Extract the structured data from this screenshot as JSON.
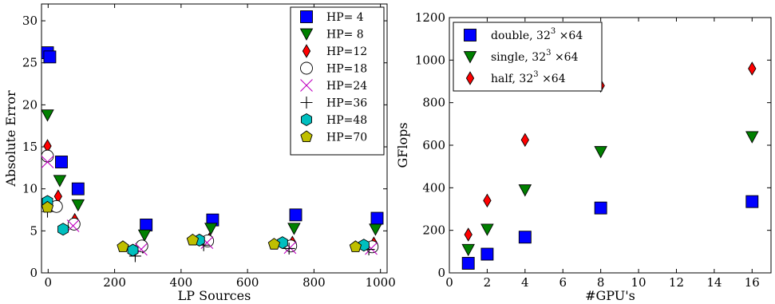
{
  "chart_data": [
    {
      "type": "scatter",
      "xlabel": "LP Sources",
      "ylabel": "Absolute Error",
      "xlim": [
        -20,
        1020
      ],
      "ylim": [
        0,
        32
      ],
      "xticks": [
        0,
        200,
        400,
        600,
        800,
        1000
      ],
      "yticks": [
        0,
        5,
        10,
        15,
        20,
        25,
        30
      ],
      "legend_position": "top-right",
      "grid": false,
      "series": [
        {
          "name": "HP= 4",
          "marker": "square",
          "color": "#0000ff",
          "x": [
            -2,
            5,
            40,
            90,
            295,
            495,
            745,
            990
          ],
          "y": [
            26.2,
            25.7,
            13.2,
            10.0,
            5.7,
            6.3,
            6.9,
            6.5
          ]
        },
        {
          "name": "HP= 8",
          "marker": "triangle-down",
          "color": "#008000",
          "x": [
            -2,
            35,
            90,
            290,
            490,
            740,
            985
          ],
          "y": [
            18.8,
            11.0,
            8.1,
            4.5,
            5.3,
            5.3,
            5.2
          ]
        },
        {
          "name": "HP=12",
          "marker": "diamond",
          "color": "#ff0000",
          "x": [
            -2,
            30,
            80,
            285,
            485,
            735,
            980
          ],
          "y": [
            15.1,
            9.1,
            6.3,
            3.1,
            4.0,
            3.6,
            3.5
          ]
        },
        {
          "name": "HP=18",
          "marker": "circle",
          "color": "#ffffff",
          "x": [
            -2,
            25,
            78,
            282,
            480,
            730,
            975
          ],
          "y": [
            13.9,
            7.9,
            5.8,
            3.2,
            3.8,
            3.2,
            3.1
          ]
        },
        {
          "name": "HP=24",
          "marker": "x",
          "color": "#bf00bf",
          "x": [
            -2,
            75,
            280,
            478,
            728,
            972
          ],
          "y": [
            13.2,
            5.6,
            2.8,
            3.6,
            3.0,
            2.9
          ]
        },
        {
          "name": "HP=36",
          "marker": "plus",
          "color": "#000000",
          "x": [
            -2,
            262,
            468,
            725,
            965
          ],
          "y": [
            7.3,
            2.0,
            3.3,
            2.9,
            2.8
          ]
        },
        {
          "name": "HP=48",
          "marker": "hexagon",
          "color": "#00bfbf",
          "x": [
            -2,
            45,
            255,
            455,
            705,
            950
          ],
          "y": [
            8.5,
            5.2,
            2.7,
            3.9,
            3.6,
            3.3
          ]
        },
        {
          "name": "HP=70",
          "marker": "pentagon",
          "color": "#bfbf00",
          "x": [
            -2,
            225,
            435,
            680,
            925
          ],
          "y": [
            7.8,
            3.1,
            3.9,
            3.4,
            3.1
          ]
        }
      ]
    },
    {
      "type": "scatter",
      "xlabel": "#GPU's",
      "ylabel": "GFlops",
      "xlim": [
        0,
        17
      ],
      "ylim": [
        0,
        1200
      ],
      "xticks": [
        0,
        2,
        4,
        6,
        8,
        10,
        12,
        14,
        16
      ],
      "yticks": [
        0,
        200,
        400,
        600,
        800,
        1000,
        1200
      ],
      "legend_position": "top-left",
      "grid": false,
      "series": [
        {
          "name": "double, 32",
          "sup": "3",
          "suffix": " ×64",
          "marker": "square",
          "color": "#0000ff",
          "x": [
            1,
            2,
            4,
            8,
            16
          ],
          "y": [
            45,
            88,
            168,
            305,
            335
          ]
        },
        {
          "name": "single, 32",
          "sup": "3",
          "suffix": " ×64",
          "marker": "triangle-down",
          "color": "#008000",
          "x": [
            1,
            2,
            4,
            8,
            16
          ],
          "y": [
            110,
            205,
            390,
            570,
            640
          ]
        },
        {
          "name": "half, 32",
          "sup": "3",
          "suffix": " ×64",
          "marker": "diamond",
          "color": "#ff0000",
          "x": [
            1,
            2,
            4,
            8,
            16
          ],
          "y": [
            180,
            340,
            625,
            880,
            960
          ]
        }
      ]
    }
  ]
}
